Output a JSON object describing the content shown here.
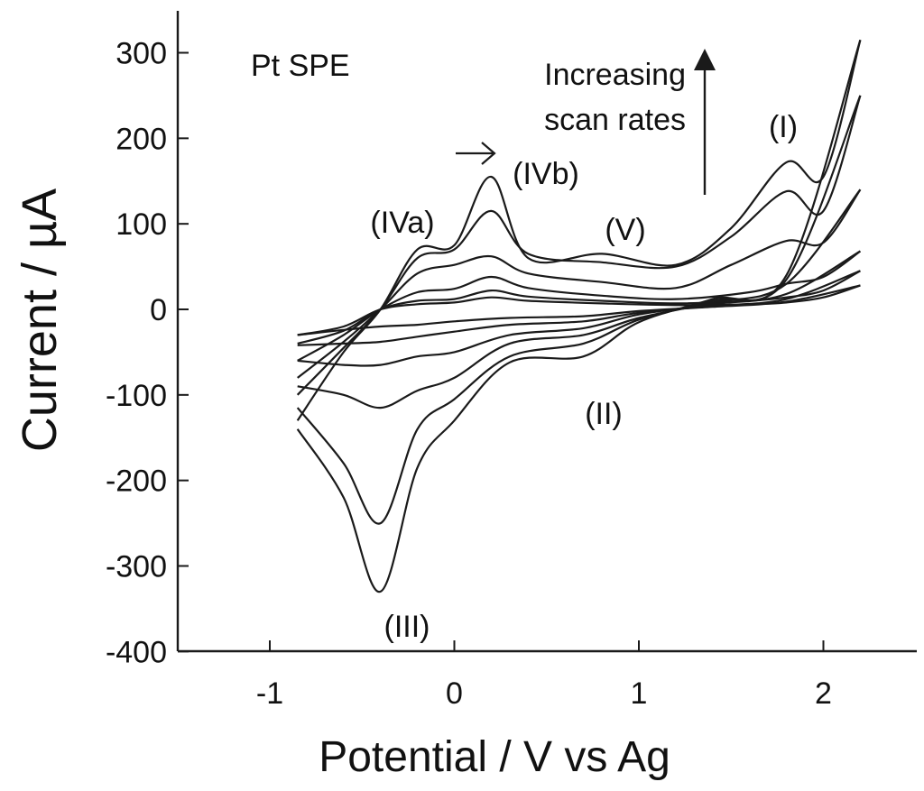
{
  "chart_data": {
    "type": "line",
    "title": "",
    "xlabel": "Potential / V vs Ag",
    "ylabel": "Current / µA",
    "xlim": [
      -1.5,
      2.5
    ],
    "ylim": [
      -400,
      350
    ],
    "xticks": [
      "-1",
      "0",
      "1",
      "2"
    ],
    "xtick_values": [
      -1,
      0,
      1,
      2
    ],
    "yticks": [
      "300",
      "200",
      "100",
      "0",
      "-100",
      "-200",
      "-300",
      "-400"
    ],
    "ytick_values": [
      300,
      200,
      100,
      0,
      -100,
      -200,
      -300,
      -400
    ],
    "grid": false,
    "legend": "none",
    "annotations": {
      "electrode": "Pt SPE",
      "scan_note_line1": "Increasing",
      "scan_note_line2": "scan rates",
      "peak_I": "(I)",
      "peak_II": "(II)",
      "peak_III": "(III)",
      "peak_IVa": "(IVa)",
      "peak_IVb": "(IVb)",
      "peak_V": "(V)"
    },
    "series": [
      {
        "forward": [
          [
            -0.85,
            -30
          ],
          [
            -0.6,
            -20
          ],
          [
            -0.4,
            0
          ],
          [
            -0.2,
            6
          ],
          [
            0,
            8
          ],
          [
            0.2,
            14
          ],
          [
            0.4,
            10
          ],
          [
            0.8,
            7
          ],
          [
            1.2,
            5
          ],
          [
            1.6,
            6
          ],
          [
            1.8,
            8
          ],
          [
            2.0,
            14
          ],
          [
            2.2,
            28
          ]
        ],
        "reverse": [
          [
            2.2,
            28
          ],
          [
            1.8,
            9
          ],
          [
            1.4,
            3
          ],
          [
            1.0,
            -2
          ],
          [
            0.7,
            -8
          ],
          [
            0.3,
            -10
          ],
          [
            0.0,
            -14
          ],
          [
            -0.2,
            -18
          ],
          [
            -0.4,
            -20
          ],
          [
            -0.6,
            -24
          ],
          [
            -0.85,
            -30
          ]
        ]
      },
      {
        "forward": [
          [
            -0.85,
            -40
          ],
          [
            -0.6,
            -25
          ],
          [
            -0.4,
            0
          ],
          [
            -0.2,
            10
          ],
          [
            0,
            12
          ],
          [
            0.2,
            22
          ],
          [
            0.4,
            15
          ],
          [
            0.8,
            10
          ],
          [
            1.2,
            7
          ],
          [
            1.6,
            10
          ],
          [
            1.8,
            14
          ],
          [
            2.0,
            22
          ],
          [
            2.2,
            45
          ]
        ],
        "reverse": [
          [
            2.2,
            45
          ],
          [
            1.8,
            12
          ],
          [
            1.4,
            4
          ],
          [
            1.0,
            -4
          ],
          [
            0.7,
            -14
          ],
          [
            0.3,
            -18
          ],
          [
            0.0,
            -26
          ],
          [
            -0.2,
            -32
          ],
          [
            -0.4,
            -38
          ],
          [
            -0.6,
            -40
          ],
          [
            -0.85,
            -42
          ]
        ]
      },
      {
        "forward": [
          [
            -0.85,
            -60
          ],
          [
            -0.6,
            -30
          ],
          [
            -0.4,
            0
          ],
          [
            -0.2,
            20
          ],
          [
            0,
            24
          ],
          [
            0.2,
            38
          ],
          [
            0.4,
            25
          ],
          [
            0.8,
            16
          ],
          [
            1.2,
            12
          ],
          [
            1.6,
            20
          ],
          [
            1.8,
            30
          ],
          [
            2.0,
            38
          ],
          [
            2.2,
            68
          ]
        ],
        "reverse": [
          [
            2.2,
            68
          ],
          [
            1.8,
            18
          ],
          [
            1.4,
            6
          ],
          [
            1.0,
            -6
          ],
          [
            0.7,
            -22
          ],
          [
            0.3,
            -30
          ],
          [
            0.0,
            -50
          ],
          [
            -0.2,
            -55
          ],
          [
            -0.4,
            -65
          ],
          [
            -0.6,
            -65
          ],
          [
            -0.85,
            -60
          ]
        ]
      },
      {
        "forward": [
          [
            -0.85,
            -80
          ],
          [
            -0.6,
            -38
          ],
          [
            -0.4,
            0
          ],
          [
            -0.2,
            42
          ],
          [
            0,
            52
          ],
          [
            0.2,
            62
          ],
          [
            0.4,
            42
          ],
          [
            0.8,
            32
          ],
          [
            1.2,
            25
          ],
          [
            1.5,
            52
          ],
          [
            1.8,
            80
          ],
          [
            2.0,
            78
          ],
          [
            2.2,
            140
          ]
        ],
        "reverse": [
          [
            2.2,
            140
          ],
          [
            1.8,
            30
          ],
          [
            1.4,
            8
          ],
          [
            1.0,
            -10
          ],
          [
            0.7,
            -30
          ],
          [
            0.3,
            -40
          ],
          [
            0.0,
            -80
          ],
          [
            -0.2,
            -95
          ],
          [
            -0.4,
            -115
          ],
          [
            -0.6,
            -100
          ],
          [
            -0.85,
            -90
          ]
        ]
      },
      {
        "forward": [
          [
            -0.85,
            -100
          ],
          [
            -0.6,
            -45
          ],
          [
            -0.4,
            0
          ],
          [
            -0.2,
            60
          ],
          [
            0,
            70
          ],
          [
            0.2,
            115
          ],
          [
            0.4,
            65
          ],
          [
            0.8,
            55
          ],
          [
            1.2,
            50
          ],
          [
            1.5,
            85
          ],
          [
            1.8,
            138
          ],
          [
            2.0,
            115
          ],
          [
            2.2,
            250
          ]
        ],
        "reverse": [
          [
            2.2,
            250
          ],
          [
            1.8,
            35
          ],
          [
            1.4,
            10
          ],
          [
            1.0,
            -12
          ],
          [
            0.7,
            -40
          ],
          [
            0.3,
            -55
          ],
          [
            0.0,
            -105
          ],
          [
            -0.2,
            -140
          ],
          [
            -0.4,
            -250
          ],
          [
            -0.6,
            -180
          ],
          [
            -0.85,
            -115
          ]
        ]
      },
      {
        "forward": [
          [
            -0.85,
            -130
          ],
          [
            -0.6,
            -50
          ],
          [
            -0.4,
            0
          ],
          [
            -0.2,
            70
          ],
          [
            0,
            75
          ],
          [
            0.2,
            155
          ],
          [
            0.4,
            60
          ],
          [
            0.8,
            65
          ],
          [
            1.2,
            52
          ],
          [
            1.5,
            95
          ],
          [
            1.8,
            172
          ],
          [
            2.0,
            155
          ],
          [
            2.2,
            315
          ]
        ],
        "reverse": [
          [
            2.2,
            315
          ],
          [
            1.8,
            40
          ],
          [
            1.4,
            12
          ],
          [
            1.0,
            -15
          ],
          [
            0.7,
            -55
          ],
          [
            0.3,
            -62
          ],
          [
            0.0,
            -130
          ],
          [
            -0.2,
            -185
          ],
          [
            -0.4,
            -330
          ],
          [
            -0.6,
            -220
          ],
          [
            -0.85,
            -140
          ]
        ]
      }
    ]
  }
}
